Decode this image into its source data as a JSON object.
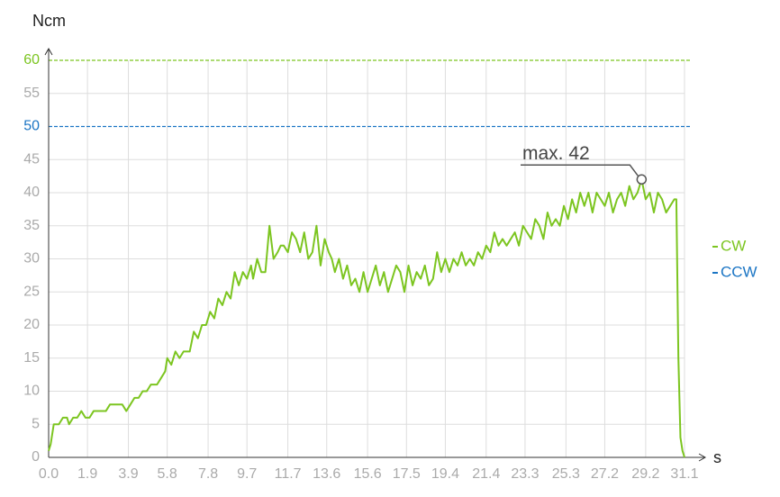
{
  "chart_data": {
    "type": "line",
    "y_label": "Ncm",
    "x_label": "s",
    "xlim": [
      0,
      31.1
    ],
    "ylim": [
      0,
      60
    ],
    "xticks": [
      {
        "value": 0,
        "label": "0.0"
      },
      1.9,
      3.9,
      5.8,
      7.8,
      9.7,
      11.7,
      13.6,
      15.6,
      17.5,
      19.4,
      21.4,
      23.3,
      25.3,
      27.2,
      29.2,
      31.1
    ],
    "yticks": [
      0,
      5,
      10,
      15,
      20,
      25,
      30,
      35,
      40,
      45,
      50,
      55,
      60
    ],
    "grid": true,
    "legend": "right",
    "x": [
      0,
      0.1,
      0.25,
      0.5,
      0.7,
      0.9,
      1.0,
      1.2,
      1.4,
      1.6,
      1.8,
      2.0,
      2.2,
      2.5,
      2.8,
      3.0,
      3.3,
      3.6,
      3.8,
      4.0,
      4.2,
      4.4,
      4.6,
      4.8,
      5.0,
      5.3,
      5.5,
      5.7,
      5.8,
      6.0,
      6.2,
      6.4,
      6.6,
      6.9,
      7.1,
      7.3,
      7.5,
      7.7,
      7.9,
      8.1,
      8.3,
      8.5,
      8.7,
      8.9,
      9.1,
      9.3,
      9.5,
      9.7,
      9.9,
      10.0,
      10.2,
      10.4,
      10.6,
      10.8,
      11.0,
      11.2,
      11.35,
      11.5,
      11.7,
      11.9,
      12.1,
      12.3,
      12.5,
      12.7,
      12.9,
      13.1,
      13.3,
      13.5,
      13.7,
      13.85,
      14.0,
      14.2,
      14.4,
      14.6,
      14.8,
      15.0,
      15.2,
      15.4,
      15.6,
      15.8,
      16.0,
      16.2,
      16.4,
      16.6,
      16.8,
      17.0,
      17.2,
      17.4,
      17.6,
      17.8,
      18.0,
      18.2,
      18.4,
      18.6,
      18.8,
      19.0,
      19.2,
      19.4,
      19.6,
      19.8,
      20.0,
      20.2,
      20.4,
      20.6,
      20.8,
      21.0,
      21.2,
      21.4,
      21.6,
      21.8,
      22.0,
      22.2,
      22.4,
      22.6,
      22.8,
      23.0,
      23.2,
      23.4,
      23.6,
      23.8,
      24.0,
      24.2,
      24.4,
      24.6,
      24.8,
      25.0,
      25.2,
      25.4,
      25.6,
      25.8,
      26.0,
      26.2,
      26.4,
      26.6,
      26.8,
      27.0,
      27.2,
      27.4,
      27.6,
      27.8,
      28.0,
      28.2,
      28.4,
      28.6,
      28.8,
      29.0,
      29.2,
      29.4,
      29.6,
      29.8,
      30.0,
      30.2,
      30.4,
      30.6,
      30.7,
      30.8,
      30.9,
      31.0,
      31.1
    ],
    "series": [
      {
        "name": "CW",
        "color": "#7cc520",
        "values": [
          1,
          2,
          5,
          5,
          6,
          6,
          5,
          6,
          6,
          7,
          6,
          6,
          7,
          7,
          7,
          8,
          8,
          8,
          7,
          8,
          9,
          9,
          10,
          10,
          11,
          11,
          12,
          13,
          15,
          14,
          16,
          15,
          16,
          16,
          19,
          18,
          20,
          20,
          22,
          21,
          24,
          23,
          25,
          24,
          28,
          26,
          28,
          27,
          29,
          27,
          30,
          28,
          28,
          35,
          30,
          31,
          32,
          32,
          31,
          34,
          33,
          31,
          34,
          30,
          31,
          35,
          29,
          33,
          31,
          30,
          28,
          30,
          27,
          29,
          26,
          27,
          25,
          28,
          25,
          27,
          29,
          26,
          28,
          25,
          27,
          29,
          28,
          25,
          29,
          26,
          28,
          27,
          29,
          26,
          27,
          31,
          28,
          30,
          28,
          30,
          29,
          31,
          29,
          30,
          29,
          31,
          30,
          32,
          31,
          34,
          32,
          33,
          32,
          33,
          34,
          32,
          35,
          34,
          33,
          36,
          35,
          33,
          37,
          35,
          36,
          35,
          38,
          36,
          39,
          37,
          40,
          38,
          40,
          37,
          40,
          39,
          38,
          40,
          37,
          39,
          40,
          38,
          41,
          39,
          40,
          42,
          39,
          40,
          37,
          40,
          39,
          37,
          38,
          39,
          39,
          15,
          3,
          1,
          0
        ]
      }
    ],
    "limits": [
      {
        "name": "CW",
        "value": 60,
        "color": "#7cc520"
      },
      {
        "name": "CCW",
        "value": 50,
        "color": "#1b75c4"
      }
    ],
    "annotation": {
      "text": "max. 42",
      "x": 29.0,
      "y": 42
    }
  }
}
